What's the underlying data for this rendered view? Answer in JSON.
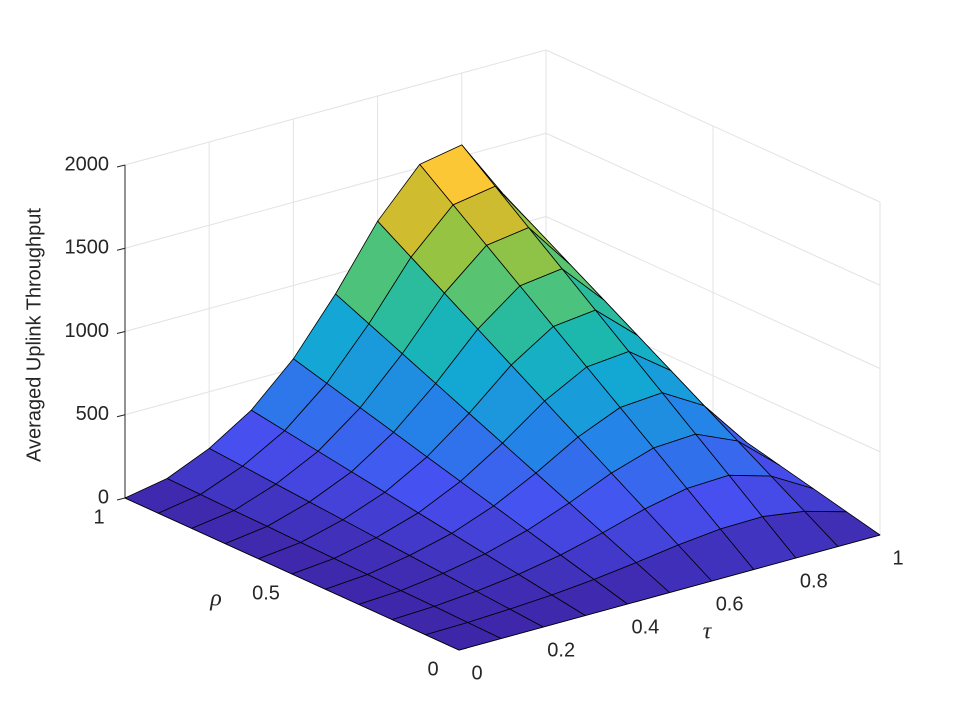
{
  "chart_data": {
    "type": "surface",
    "zlabel": "Averaged Uplink Throughput",
    "xlabel": "τ",
    "ylabel": "ρ",
    "x": [
      0,
      0.1,
      0.2,
      0.3,
      0.4,
      0.5,
      0.6,
      0.7,
      0.8,
      0.9,
      1
    ],
    "y": [
      0,
      0.1,
      0.2,
      0.3,
      0.4,
      0.5,
      0.6,
      0.7,
      0.8,
      0.9,
      1
    ],
    "z": [
      [
        0,
        0,
        0,
        0,
        0,
        0,
        0,
        0,
        0,
        0,
        0
      ],
      [
        0,
        5,
        16,
        32,
        56,
        88,
        125,
        152,
        157,
        120,
        48
      ],
      [
        0,
        10,
        32,
        64,
        112,
        176,
        250,
        304,
        314,
        240,
        96
      ],
      [
        0,
        14,
        48,
        96,
        168,
        264,
        374,
        456,
        470,
        360,
        144
      ],
      [
        0,
        19,
        64,
        128,
        224,
        352,
        499,
        608,
        627,
        480,
        192
      ],
      [
        0,
        24,
        80,
        160,
        280,
        440,
        624,
        760,
        784,
        600,
        240
      ],
      [
        0,
        29,
        96,
        192,
        336,
        528,
        749,
        912,
        941,
        720,
        288
      ],
      [
        0,
        34,
        112,
        224,
        392,
        616,
        874,
        1064,
        1098,
        840,
        336
      ],
      [
        0,
        38,
        128,
        256,
        448,
        704,
        998,
        1216,
        1254,
        960,
        384
      ],
      [
        0,
        43,
        144,
        288,
        504,
        792,
        1123,
        1368,
        1411,
        1080,
        432
      ],
      [
        0,
        48,
        160,
        320,
        560,
        880,
        1248,
        1520,
        1568,
        1200,
        480
      ]
    ],
    "xlim": [
      0,
      1
    ],
    "ylim": [
      0,
      1
    ],
    "zlim": [
      0,
      2000
    ],
    "xticks": [
      0,
      0.2,
      0.4,
      0.6,
      0.8,
      1
    ],
    "yticks": [
      0,
      0.5,
      1
    ],
    "zticks": [
      0,
      500,
      1000,
      1500,
      2000
    ],
    "grid": true,
    "colormap": "parula"
  }
}
